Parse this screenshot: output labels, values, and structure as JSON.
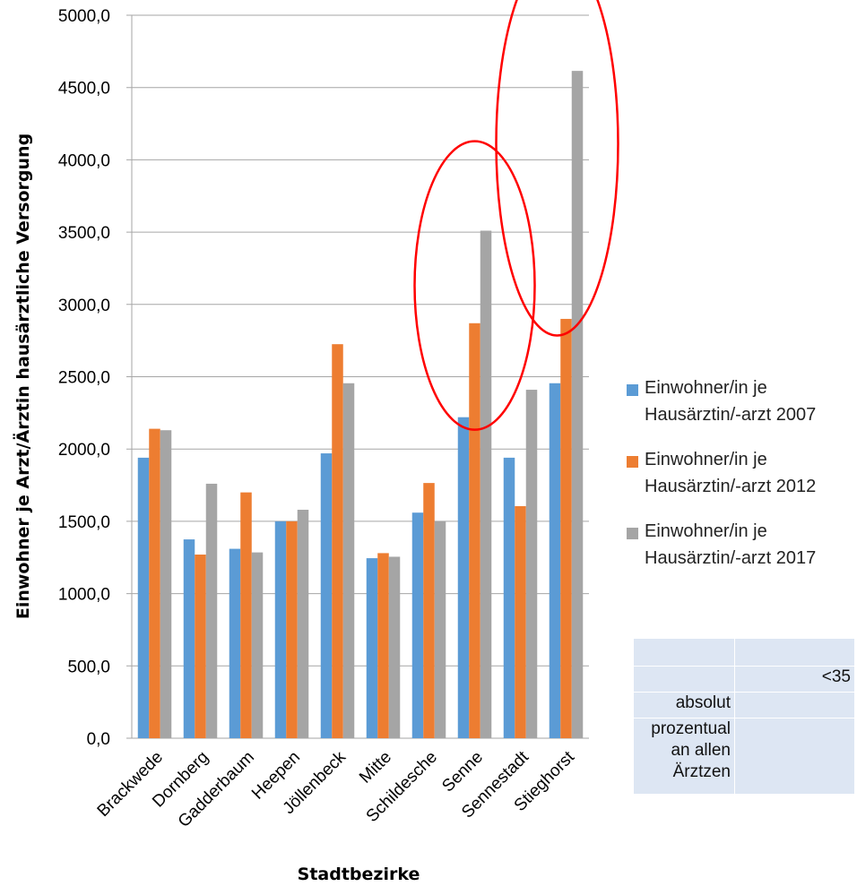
{
  "chart_data": {
    "type": "bar",
    "title": "",
    "xlabel": "Stadtbezirke",
    "ylabel": "Einwohner je Arzt/Ärztin hausärztliche Versorgung",
    "ylim": [
      0,
      5000
    ],
    "yticks": [
      "0,0",
      "500,0",
      "1000,0",
      "1500,0",
      "2000,0",
      "2500,0",
      "3000,0",
      "3500,0",
      "4000,0",
      "4500,0",
      "5000,0"
    ],
    "grid": true,
    "legend_position": "right",
    "categories": [
      "Brackwede",
      "Dornberg",
      "Gadderbaum",
      "Heepen",
      "Jöllenbeck",
      "Mitte",
      "Schildesche",
      "Senne",
      "Sennestadt",
      "Stieghorst"
    ],
    "series": [
      {
        "name": "Einwohner/in je Hausärztin/-arzt 2007",
        "name_lines": [
          "Einwohner/in je",
          "Hausärztin/-arzt 2007"
        ],
        "color": "#5b9bd5",
        "values": [
          1940,
          1375,
          1310,
          1500,
          1970,
          1245,
          1560,
          2220,
          1940,
          2455
        ]
      },
      {
        "name": "Einwohner/in je Hausärztin/-arzt 2012",
        "name_lines": [
          "Einwohner/in je",
          "Hausärztin/-arzt 2012"
        ],
        "color": "#ed7d31",
        "values": [
          2140,
          1270,
          1700,
          1500,
          2725,
          1280,
          1765,
          2870,
          1605,
          2900
        ]
      },
      {
        "name": "Einwohner/in je Hausärztin/-arzt 2017",
        "name_lines": [
          "Einwohner/in je",
          "Hausärztin/-arzt 2017"
        ],
        "color": "#a5a5a5",
        "values": [
          2130,
          1760,
          1285,
          1580,
          2455,
          1255,
          1500,
          3510,
          2410,
          4615
        ]
      }
    ],
    "annotations": [
      {
        "type": "ellipse",
        "around_category": "Senne",
        "color": "#ff0000"
      },
      {
        "type": "ellipse",
        "around_category": "Stieghorst",
        "color": "#ff0000"
      }
    ]
  },
  "table": {
    "rows": [
      [
        "",
        ""
      ],
      [
        "",
        "<35"
      ],
      [
        "absolut",
        ""
      ],
      [
        "prozentual an allen Ärztzen",
        ""
      ]
    ],
    "wrapped_label": [
      "prozentual",
      "an allen",
      "Ärztzen"
    ]
  }
}
